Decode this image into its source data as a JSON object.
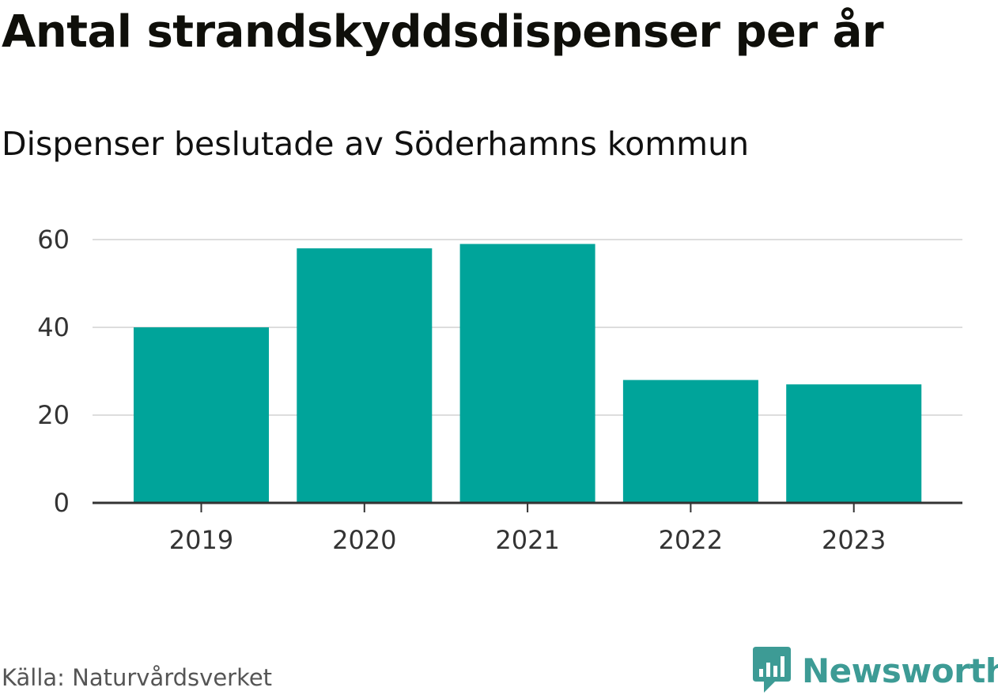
{
  "header": {
    "title": "Antal strandskyddsdispenser per år",
    "subtitle": "Dispenser beslutade av Söderhamns kommun"
  },
  "footer": {
    "source": "Källa: Naturvårdsverket",
    "brand": "Newsworthy",
    "brand_icon": "newsworthy-logo-icon"
  },
  "colors": {
    "bar": "#00a49a",
    "grid": "#dddddd",
    "axis": "#333333",
    "brand": "#3d9b95"
  },
  "chart_data": {
    "type": "bar",
    "title": "Antal strandskyddsdispenser per år",
    "subtitle": "Dispenser beslutade av Söderhamns kommun",
    "categories": [
      "2019",
      "2020",
      "2021",
      "2022",
      "2023"
    ],
    "values": [
      40,
      58,
      59,
      28,
      27
    ],
    "xlabel": "",
    "ylabel": "",
    "ylim": [
      0,
      60
    ],
    "yticks": [
      0,
      20,
      40,
      60
    ],
    "grid": true
  }
}
